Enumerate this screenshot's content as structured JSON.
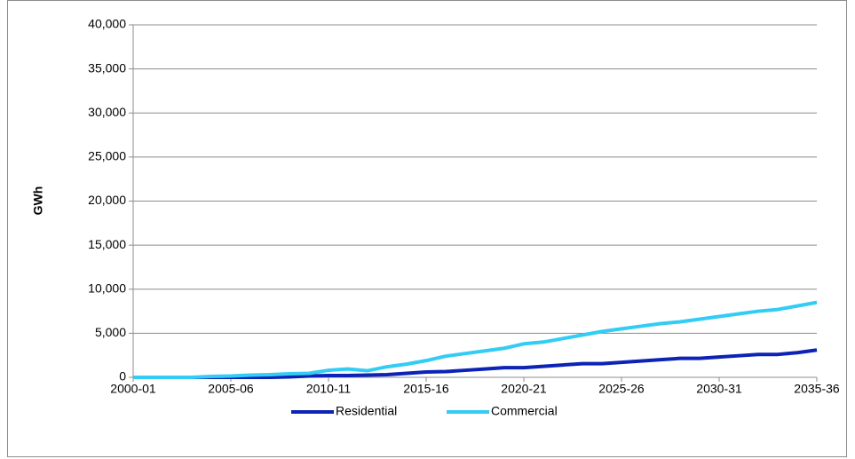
{
  "chart_data": {
    "type": "line",
    "y_label": "GWh",
    "categories": [
      "2000-01",
      null,
      null,
      null,
      null,
      "2005-06",
      null,
      null,
      null,
      null,
      "2010-11",
      null,
      null,
      null,
      null,
      "2015-16",
      null,
      null,
      null,
      null,
      "2020-21",
      null,
      null,
      null,
      null,
      "2025-26",
      null,
      null,
      null,
      null,
      "2030-31",
      null,
      null,
      null,
      null,
      "2035-36"
    ],
    "series": [
      {
        "name": "Residential",
        "color": "#0c23b5",
        "values": [
          0,
          0,
          0,
          0,
          0,
          0,
          0,
          0,
          50,
          150,
          200,
          200,
          250,
          300,
          450,
          600,
          650,
          800,
          950,
          1100,
          1100,
          1250,
          1400,
          1550,
          1550,
          1700,
          1850,
          2000,
          2150,
          2150,
          2300,
          2450,
          2600,
          2600,
          2800,
          3100
        ]
      },
      {
        "name": "Commercial",
        "color": "#33ccf5",
        "values": [
          0,
          0,
          0,
          0,
          100,
          150,
          250,
          300,
          400,
          450,
          800,
          950,
          750,
          1200,
          1500,
          1900,
          2400,
          2700,
          3000,
          3300,
          3800,
          4000,
          4400,
          4800,
          5200,
          5500,
          5800,
          6100,
          6300,
          6600,
          6900,
          7200,
          7500,
          7700,
          8100,
          8500
        ]
      }
    ],
    "ylim": [
      0,
      40000
    ],
    "yticks": [
      0,
      {
        "value": 5000,
        "label": "5,000"
      },
      {
        "value": 10000,
        "label": "10,000"
      },
      {
        "value": 15000,
        "label": "15,000"
      },
      {
        "value": 20000,
        "label": "20,000"
      },
      {
        "value": 25000,
        "label": "25,000"
      },
      {
        "value": 30000,
        "label": "30,000"
      },
      {
        "value": 35000,
        "label": "35,000"
      },
      {
        "value": 40000,
        "label": "40,000"
      }
    ],
    "grid": true,
    "legend": "bottom"
  }
}
